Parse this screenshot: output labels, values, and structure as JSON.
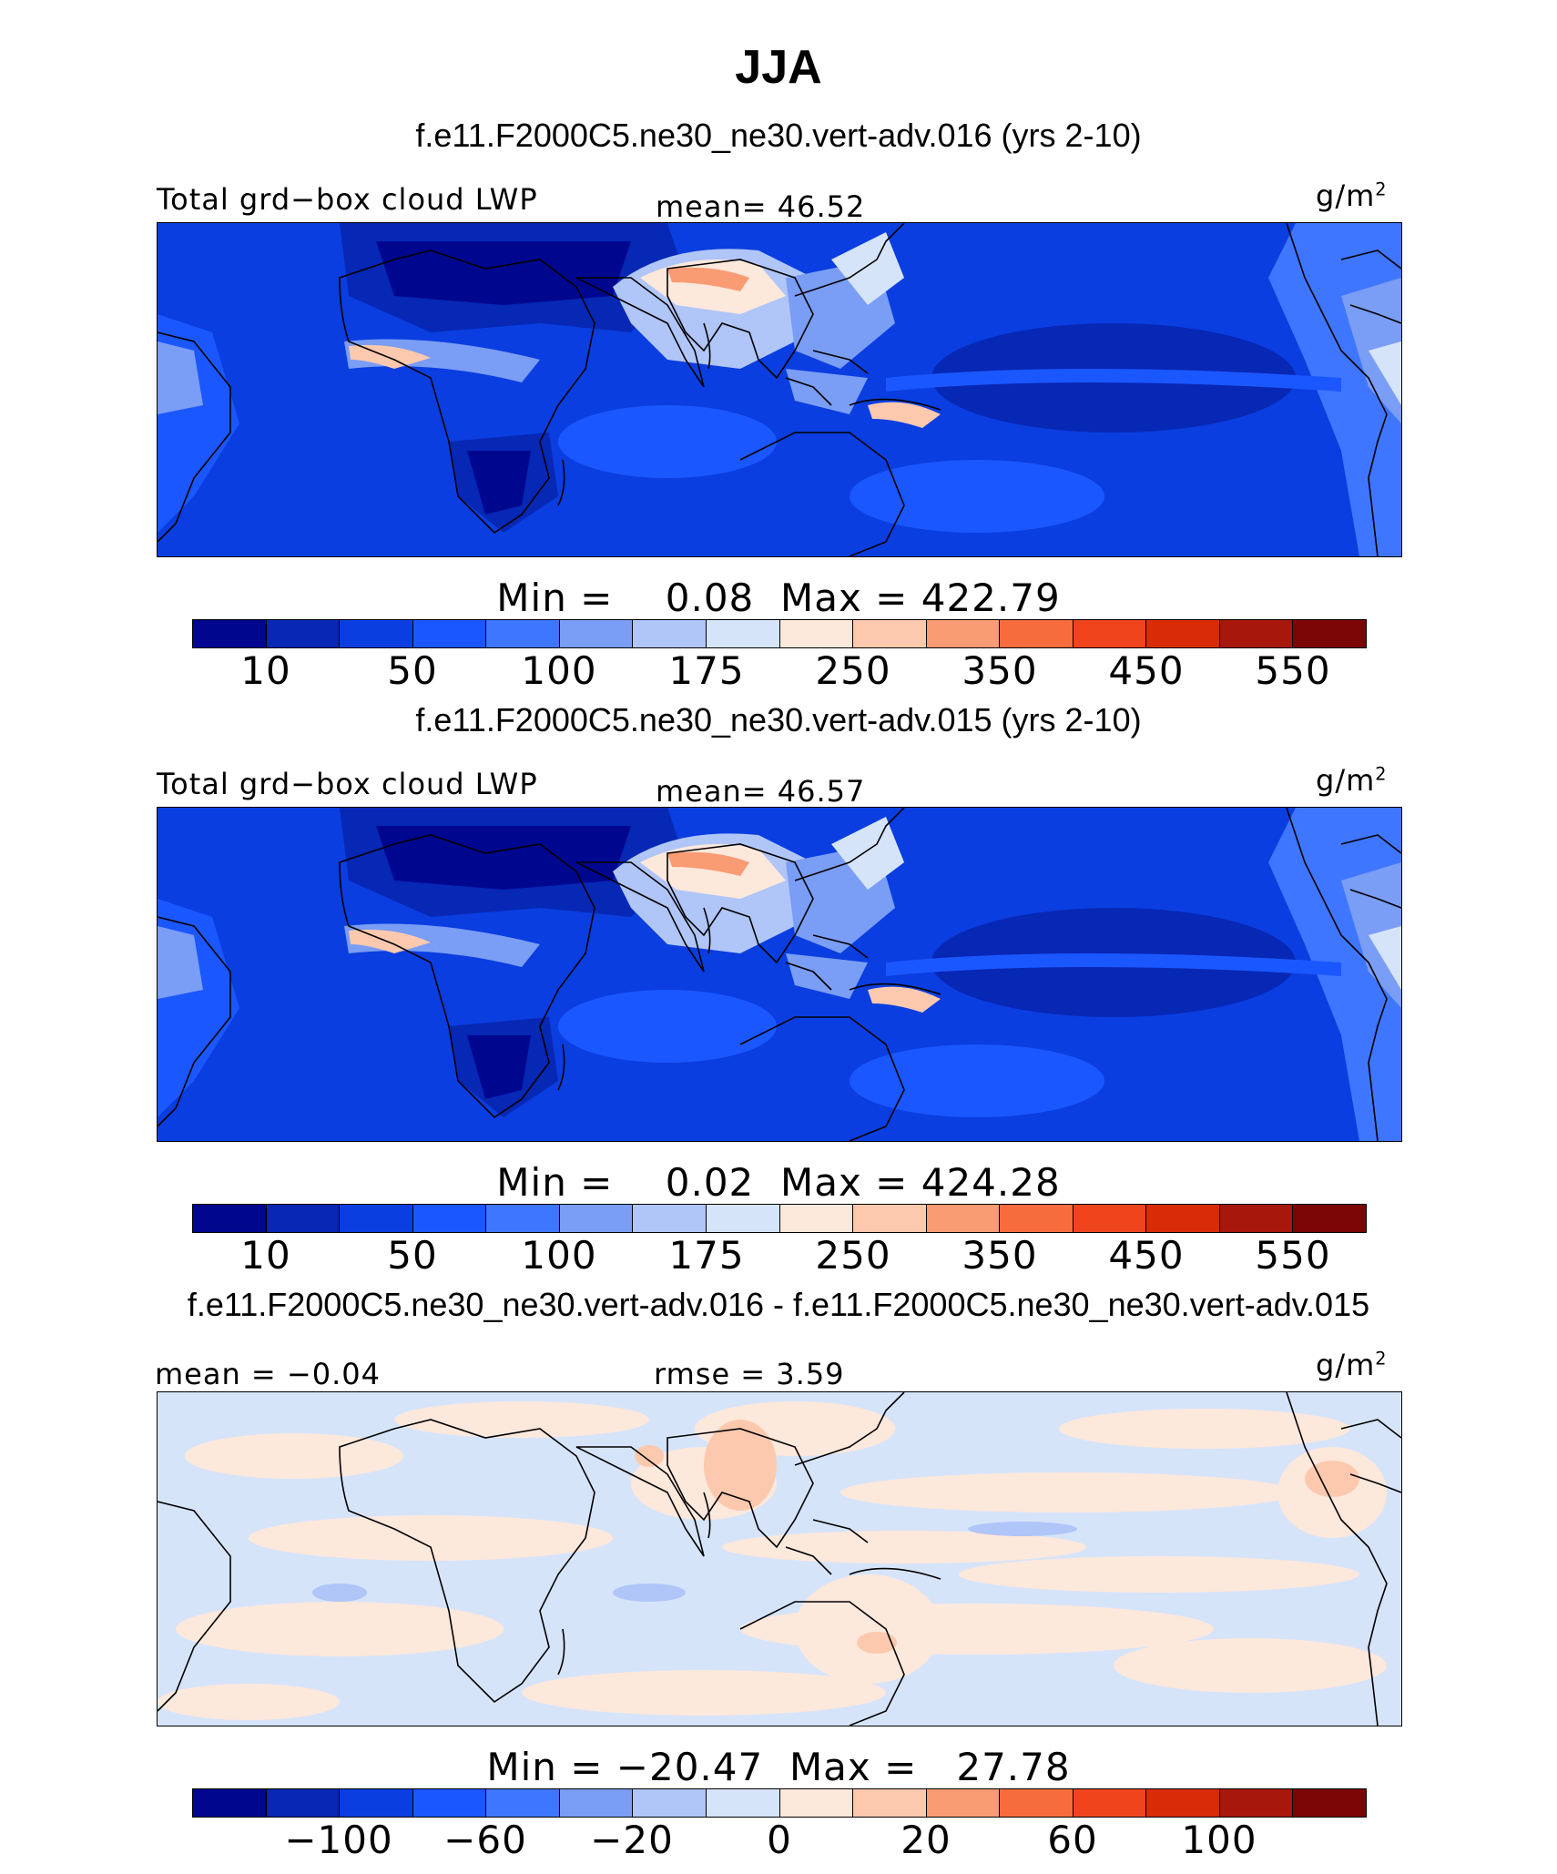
{
  "title": "JJA",
  "colors": {
    "scale": [
      "#00078f",
      "#0727b5",
      "#0a3ee0",
      "#1b57ff",
      "#3f76ff",
      "#7a9df5",
      "#b0c5f8",
      "#d6e4fa",
      "#fde8dc",
      "#fcc9ae",
      "#f99b73",
      "#f76c3d",
      "#f0451c",
      "#d92b06",
      "#a8170c",
      "#7c0505"
    ]
  },
  "chart_data": [
    {
      "type": "heatmap",
      "case": "f.e11.F2000C5.ne30_ne30.vert-adv.016 (yrs 2-10)",
      "variable": "Total grd−box cloud LWP",
      "mean_text": "mean=   46.52",
      "units": "g/m",
      "units_exp": "2",
      "min_text": "Min =    0.08",
      "max_text": "Max = 422.79",
      "min": 0.08,
      "max": 422.79,
      "mean": 46.52,
      "colorbar_ticks": [
        "10",
        "50",
        "100",
        "175",
        "250",
        "350",
        "450",
        "550"
      ]
    },
    {
      "type": "heatmap",
      "case": "f.e11.F2000C5.ne30_ne30.vert-adv.015 (yrs 2-10)",
      "variable": "Total grd−box cloud LWP",
      "mean_text": "mean=   46.57",
      "units": "g/m",
      "units_exp": "2",
      "min_text": "Min =    0.02",
      "max_text": "Max = 424.28",
      "min": 0.02,
      "max": 424.28,
      "mean": 46.57,
      "colorbar_ticks": [
        "10",
        "50",
        "100",
        "175",
        "250",
        "350",
        "450",
        "550"
      ]
    },
    {
      "type": "heatmap",
      "case": "f.e11.F2000C5.ne30_ne30.vert-adv.016 - f.e11.F2000C5.ne30_ne30.vert-adv.015",
      "mean_text": "mean =  −0.04",
      "rmse_text": "rmse =    3.59",
      "units": "g/m",
      "units_exp": "2",
      "min_text": "Min = −20.47",
      "max_text": "Max =   27.78",
      "min": -20.47,
      "max": 27.78,
      "mean": -0.04,
      "rmse": 3.59,
      "colorbar_ticks": [
        "−100",
        "−60",
        "−20",
        "0",
        "20",
        "60",
        "100"
      ]
    }
  ]
}
